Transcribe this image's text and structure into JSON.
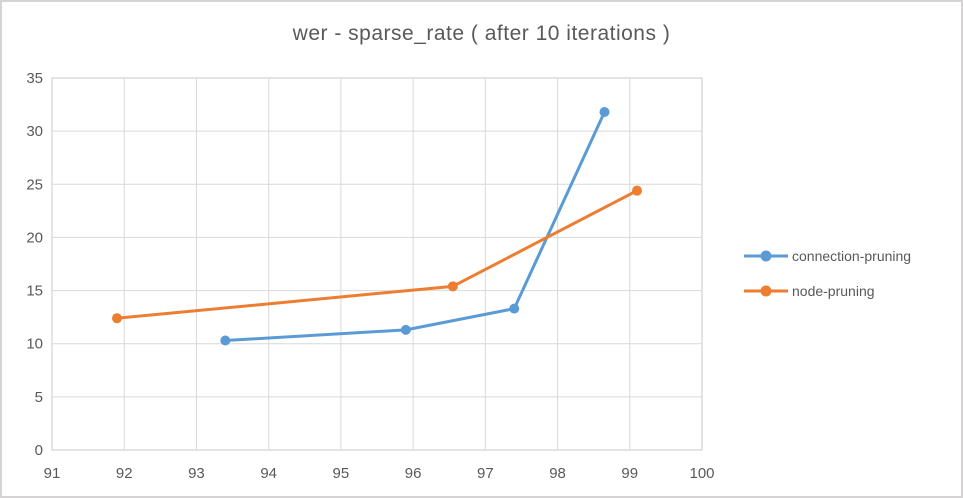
{
  "window": {
    "background": "#ffffff",
    "frame_border_color": "#d5d3d3"
  },
  "chart_data": {
    "type": "line",
    "title": "wer - sparse_rate ( after 10 iterations )",
    "xlabel": "",
    "ylabel": "",
    "xlim": [
      91,
      100
    ],
    "ylim": [
      0,
      35
    ],
    "x_ticks": [
      91,
      92,
      93,
      94,
      95,
      96,
      97,
      98,
      99,
      100
    ],
    "y_ticks": [
      0,
      5,
      10,
      15,
      20,
      25,
      30,
      35
    ],
    "grid": true,
    "legend_position": "right",
    "series": [
      {
        "name": "connection-pruning",
        "color": "#5b9bd5",
        "marker": "circle",
        "points": [
          [
            93.4,
            10.3
          ],
          [
            95.9,
            11.3
          ],
          [
            97.4,
            13.3
          ],
          [
            98.65,
            31.8
          ]
        ]
      },
      {
        "name": "node-pruning",
        "color": "#ed7d31",
        "marker": "circle",
        "points": [
          [
            91.9,
            12.4
          ],
          [
            96.55,
            15.4
          ],
          [
            99.1,
            24.4
          ]
        ]
      }
    ],
    "styles": {
      "grid_color": "#d9d9d9",
      "tick_label_color": "#595959",
      "title_color": "#595959",
      "legend_text_color": "#595959",
      "tick_font_size": 15,
      "line_width": 3,
      "marker_radius": 5
    }
  }
}
